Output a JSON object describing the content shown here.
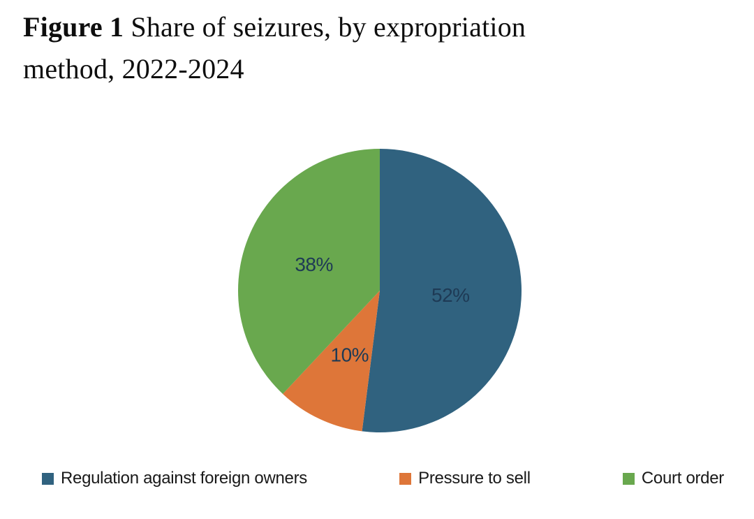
{
  "figure": {
    "title_bold": "Figure 1",
    "title_rest": " Share of seizures, by expropriation",
    "title_line2": "method, 2022-2024"
  },
  "chart_data": {
    "type": "pie",
    "title": "Figure 1 Share of seizures, by expropriation method, 2022-2024",
    "categories": [
      "Regulation against foreign owners",
      "Pressure to sell",
      "Court order"
    ],
    "values": [
      52,
      10,
      38
    ],
    "labels": [
      "52%",
      "10%",
      "38%"
    ],
    "colors": [
      "#30627f",
      "#de7639",
      "#69a84e"
    ],
    "label_color": "#1e3a55",
    "start_angle_deg": 0,
    "direction": "clockwise",
    "legend_position": "bottom",
    "background": "#ffffff"
  }
}
